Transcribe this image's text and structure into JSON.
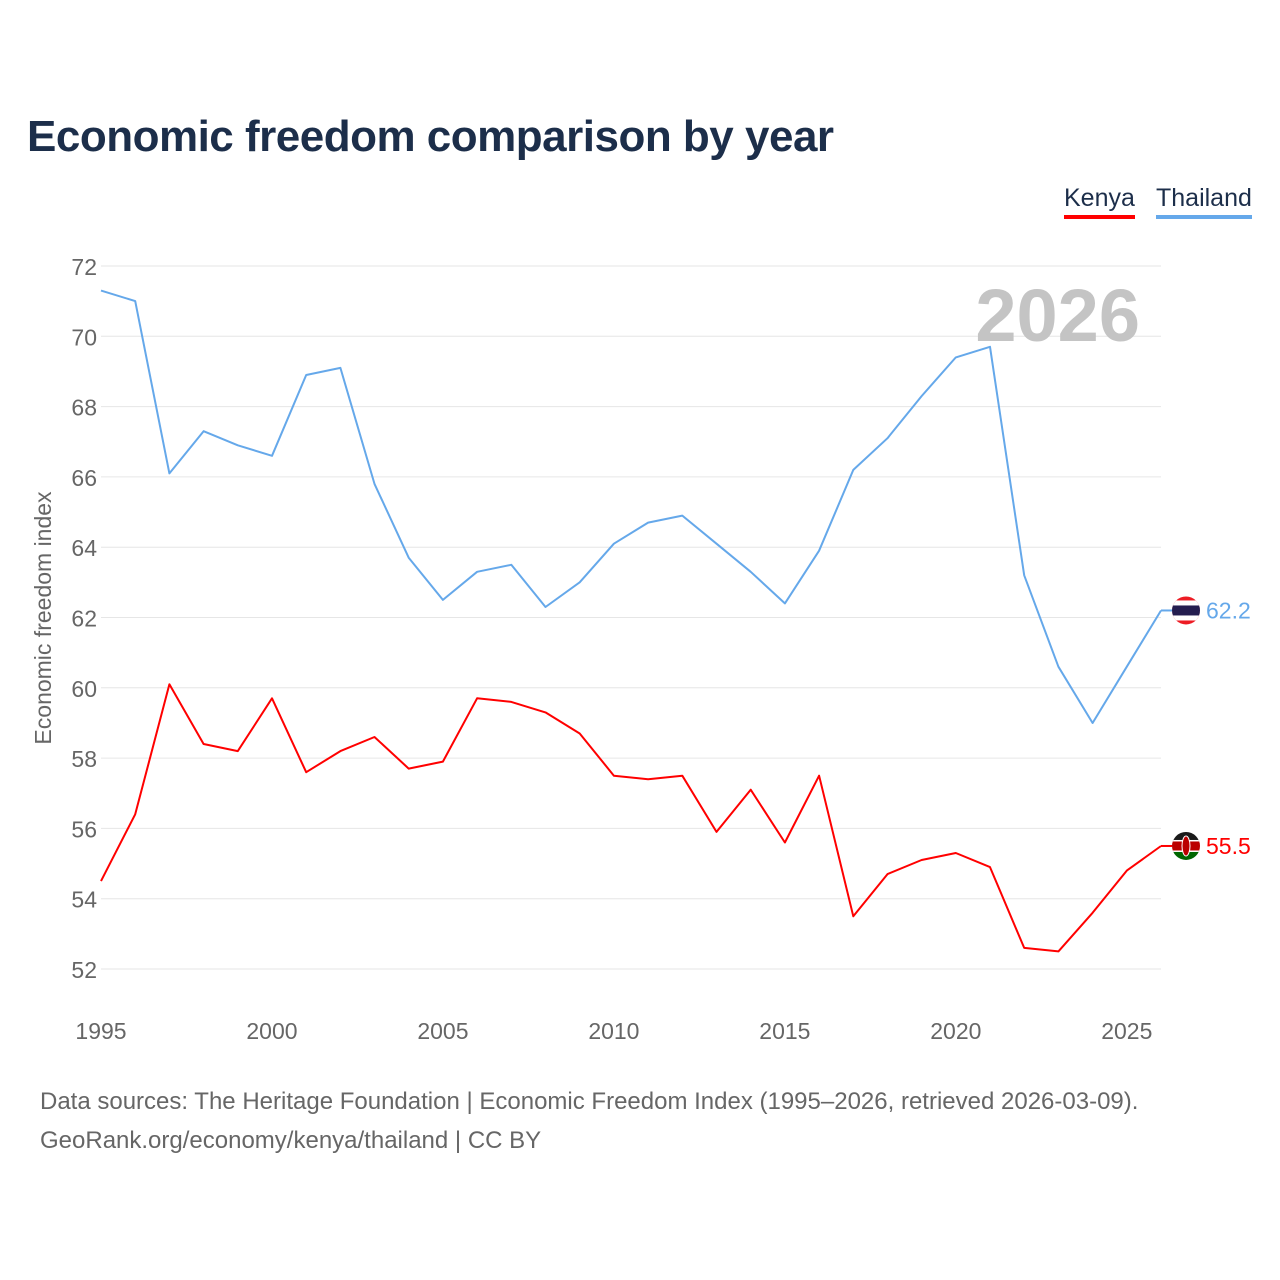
{
  "title": "Economic freedom comparison by year",
  "legend": [
    {
      "label": "Kenya",
      "color": "#ff0000"
    },
    {
      "label": "Thailand",
      "color": "#65a8ea"
    }
  ],
  "footer": {
    "line1": "Data sources: The Heritage Foundation | Economic Freedom Index (1995–2026, retrieved 2026-03-09).",
    "line2": "GeoRank.org/economy/kenya/thailand | CC BY"
  },
  "chart_data": {
    "type": "line",
    "title": "Economic freedom comparison by year",
    "xlabel": "",
    "ylabel": "Economic freedom index",
    "year_watermark": "2026",
    "xlim": [
      1995,
      2026
    ],
    "ylim": [
      52,
      72
    ],
    "xticks": [
      "1995",
      "2000",
      "2005",
      "2010",
      "2015",
      "2020",
      "2025"
    ],
    "yticks": [
      "52",
      "54",
      "56",
      "58",
      "60",
      "62",
      "64",
      "66",
      "68",
      "70",
      "72"
    ],
    "grid": true,
    "legend_position": "top-right",
    "x": [
      1995,
      1996,
      1997,
      1998,
      1999,
      2000,
      2001,
      2002,
      2003,
      2004,
      2005,
      2006,
      2007,
      2008,
      2009,
      2010,
      2011,
      2012,
      2013,
      2014,
      2015,
      2016,
      2017,
      2018,
      2019,
      2020,
      2021,
      2022,
      2023,
      2024,
      2025,
      2026
    ],
    "series": [
      {
        "name": "Kenya",
        "color": "#ff0000",
        "end_label": "55.5",
        "flag": "kenya-flag",
        "values": [
          54.5,
          56.4,
          60.1,
          58.4,
          58.2,
          59.7,
          57.6,
          58.2,
          58.6,
          57.7,
          57.9,
          59.7,
          59.6,
          59.3,
          58.7,
          57.5,
          57.4,
          57.5,
          55.9,
          57.1,
          55.6,
          57.5,
          53.5,
          54.7,
          55.1,
          55.3,
          54.9,
          52.6,
          52.5,
          53.6,
          54.8,
          55.5
        ]
      },
      {
        "name": "Thailand",
        "color": "#65a8ea",
        "end_label": "62.2",
        "flag": "thailand-flag",
        "values": [
          71.3,
          71.0,
          66.1,
          67.3,
          66.9,
          66.6,
          68.9,
          69.1,
          65.8,
          63.7,
          62.5,
          63.3,
          63.5,
          62.3,
          63.0,
          64.1,
          64.7,
          64.9,
          64.1,
          63.3,
          62.4,
          63.9,
          66.2,
          67.1,
          68.3,
          69.4,
          69.7,
          63.2,
          60.6,
          59.0,
          60.6,
          62.2
        ]
      }
    ]
  }
}
